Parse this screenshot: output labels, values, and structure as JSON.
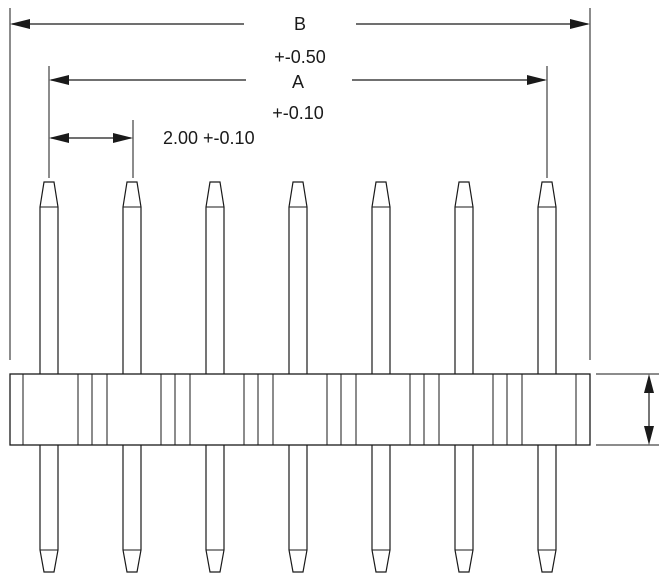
{
  "dimensions": {
    "overall": {
      "label": "B",
      "tolerance": "+-0.50"
    },
    "span": {
      "label": "A",
      "tolerance": "+-0.10"
    },
    "pitch": {
      "text": "2.00 +-0.10"
    }
  },
  "pins": {
    "count": 7
  },
  "colors": {
    "line": "#1a1a1a",
    "background": "#ffffff"
  }
}
